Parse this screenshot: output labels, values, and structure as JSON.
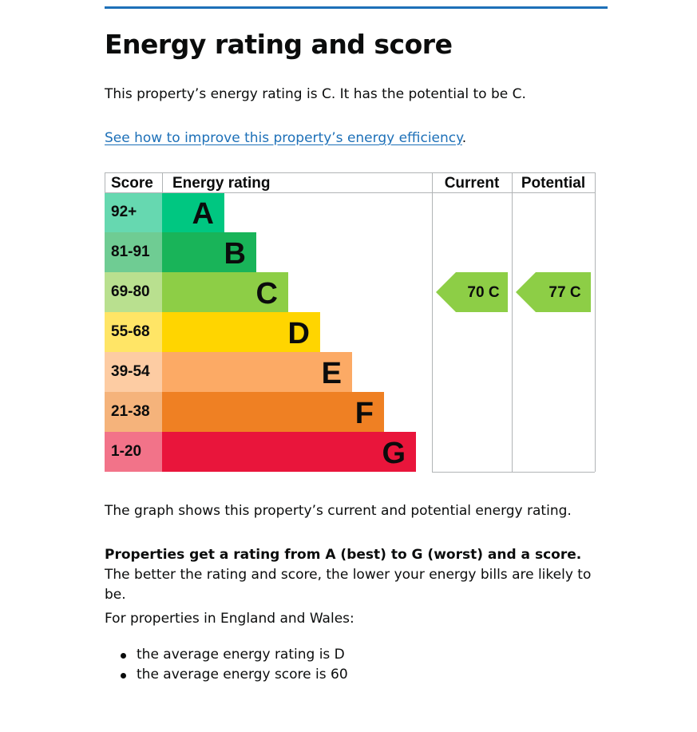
{
  "heading": "Energy rating and score",
  "lead": "This property’s energy rating is C. It has the potential to be C.",
  "link": {
    "text": "See how to improve this property’s energy efficiency",
    "suffix": "."
  },
  "graph_caption": "The graph shows this property’s current and potential energy rating.",
  "rating_explanation": {
    "bold": "Properties get a rating from A (best) to G (worst) and a score.",
    "rest": " The better the rating and score, the lower your energy bills are likely to be."
  },
  "england_wales_intro": "For properties in England and Wales:",
  "averages": [
    "the average energy rating is D",
    "the average energy score is 60"
  ],
  "chart_data": {
    "type": "bar",
    "headers": {
      "score": "Score",
      "rating": "Energy rating",
      "current": "Current",
      "potential": "Potential"
    },
    "bands": [
      {
        "letter": "A",
        "range": "92+",
        "color": "#00c781",
        "score_bg": "#66d8b0"
      },
      {
        "letter": "B",
        "range": "81-91",
        "color": "#19b459",
        "score_bg": "#6fcc93"
      },
      {
        "letter": "C",
        "range": "69-80",
        "color": "#8dce46",
        "score_bg": "#b9e08f"
      },
      {
        "letter": "D",
        "range": "55-68",
        "color": "#ffd500",
        "score_bg": "#ffe566"
      },
      {
        "letter": "E",
        "range": "39-54",
        "color": "#fcaa65",
        "score_bg": "#fdcca3"
      },
      {
        "letter": "F",
        "range": "21-38",
        "color": "#ef8023",
        "score_bg": "#f5b37b"
      },
      {
        "letter": "G",
        "range": "1-20",
        "color": "#e9153b",
        "score_bg": "#f27389"
      }
    ],
    "current": {
      "score": 70,
      "letter": "C",
      "label": "70  C"
    },
    "potential": {
      "score": 77,
      "letter": "C",
      "label": "77  C"
    }
  }
}
